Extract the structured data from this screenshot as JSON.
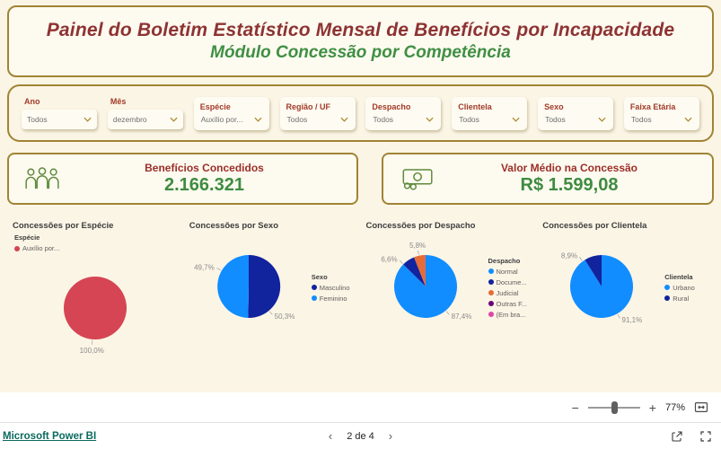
{
  "header": {
    "title": "Painel do Boletim Estatístico Mensal de Benefícios por Incapacidade",
    "subtitle": "Módulo Concessão por Competência"
  },
  "filters": [
    {
      "label": "Ano",
      "value": "Todos"
    },
    {
      "label": "Mês",
      "value": "dezembro"
    },
    {
      "label": "Espécie",
      "value": "Auxílio por..."
    },
    {
      "label": "Região / UF",
      "value": "Todos"
    },
    {
      "label": "Despacho",
      "value": "Todos"
    },
    {
      "label": "Clientela",
      "value": "Todos"
    },
    {
      "label": "Sexo",
      "value": "Todos"
    },
    {
      "label": "Faixa Etária",
      "value": "Todos"
    }
  ],
  "kpis": [
    {
      "label": "Benefícios Concedidos",
      "value": "2.166.321",
      "icon": "people-group-icon"
    },
    {
      "label": "Valor Médio na Concessão",
      "value": "R$ 1.599,08",
      "icon": "banknote-icon"
    }
  ],
  "chart_data": [
    {
      "type": "pie",
      "title": "Concessões por Espécie",
      "legend_title": "Espécie",
      "legend_position": "top-left",
      "slices": [
        {
          "name": "Auxílio por...",
          "value": 100.0,
          "label": "100,0%",
          "color": "#D64553",
          "label_angle": 185
        }
      ]
    },
    {
      "type": "pie",
      "title": "Concessões por Sexo",
      "legend_title": "Sexo",
      "legend_position": "right",
      "slices": [
        {
          "name": "Masculino",
          "value": 50.3,
          "label": "50,3%",
          "color": "#12239E",
          "label_angle": 140
        },
        {
          "name": "Feminino",
          "value": 49.7,
          "label": "49,7%",
          "color": "#118DFF",
          "label_angle": 300
        }
      ]
    },
    {
      "type": "pie",
      "title": "Concessões por Despacho",
      "legend_title": "Despacho",
      "legend_position": "right",
      "slices": [
        {
          "name": "Normal",
          "value": 87.4,
          "label": "87,4%",
          "color": "#118DFF",
          "label_angle": 140
        },
        {
          "name": "Docume...",
          "value": 6.6,
          "label": "6,6%",
          "color": "#12239E",
          "label_angle": 315
        },
        {
          "name": "Judicial",
          "value": 5.8,
          "label": "5,8%",
          "color": "#E66C37",
          "label_angle": 348
        },
        {
          "name": "Outras F...",
          "value": 0.1,
          "color": "#6B007B"
        },
        {
          "name": "(Em bra...",
          "value": 0.1,
          "color": "#E044A7"
        }
      ]
    },
    {
      "type": "pie",
      "title": "Concessões por Clientela",
      "legend_title": "Clientela",
      "legend_position": "right",
      "slices": [
        {
          "name": "Urbano",
          "value": 91.1,
          "label": "91,1%",
          "color": "#118DFF",
          "label_angle": 150
        },
        {
          "name": "Rural",
          "value": 8.9,
          "label": "8,9%",
          "color": "#12239E",
          "label_angle": 323
        }
      ]
    }
  ],
  "zoom_bar": {
    "zoom_out": "−",
    "zoom_in": "+",
    "zoom_level": "77%"
  },
  "footer": {
    "brand": "Microsoft Power BI",
    "prev": "‹",
    "page_indicator": "2 de 4",
    "next": "›"
  }
}
